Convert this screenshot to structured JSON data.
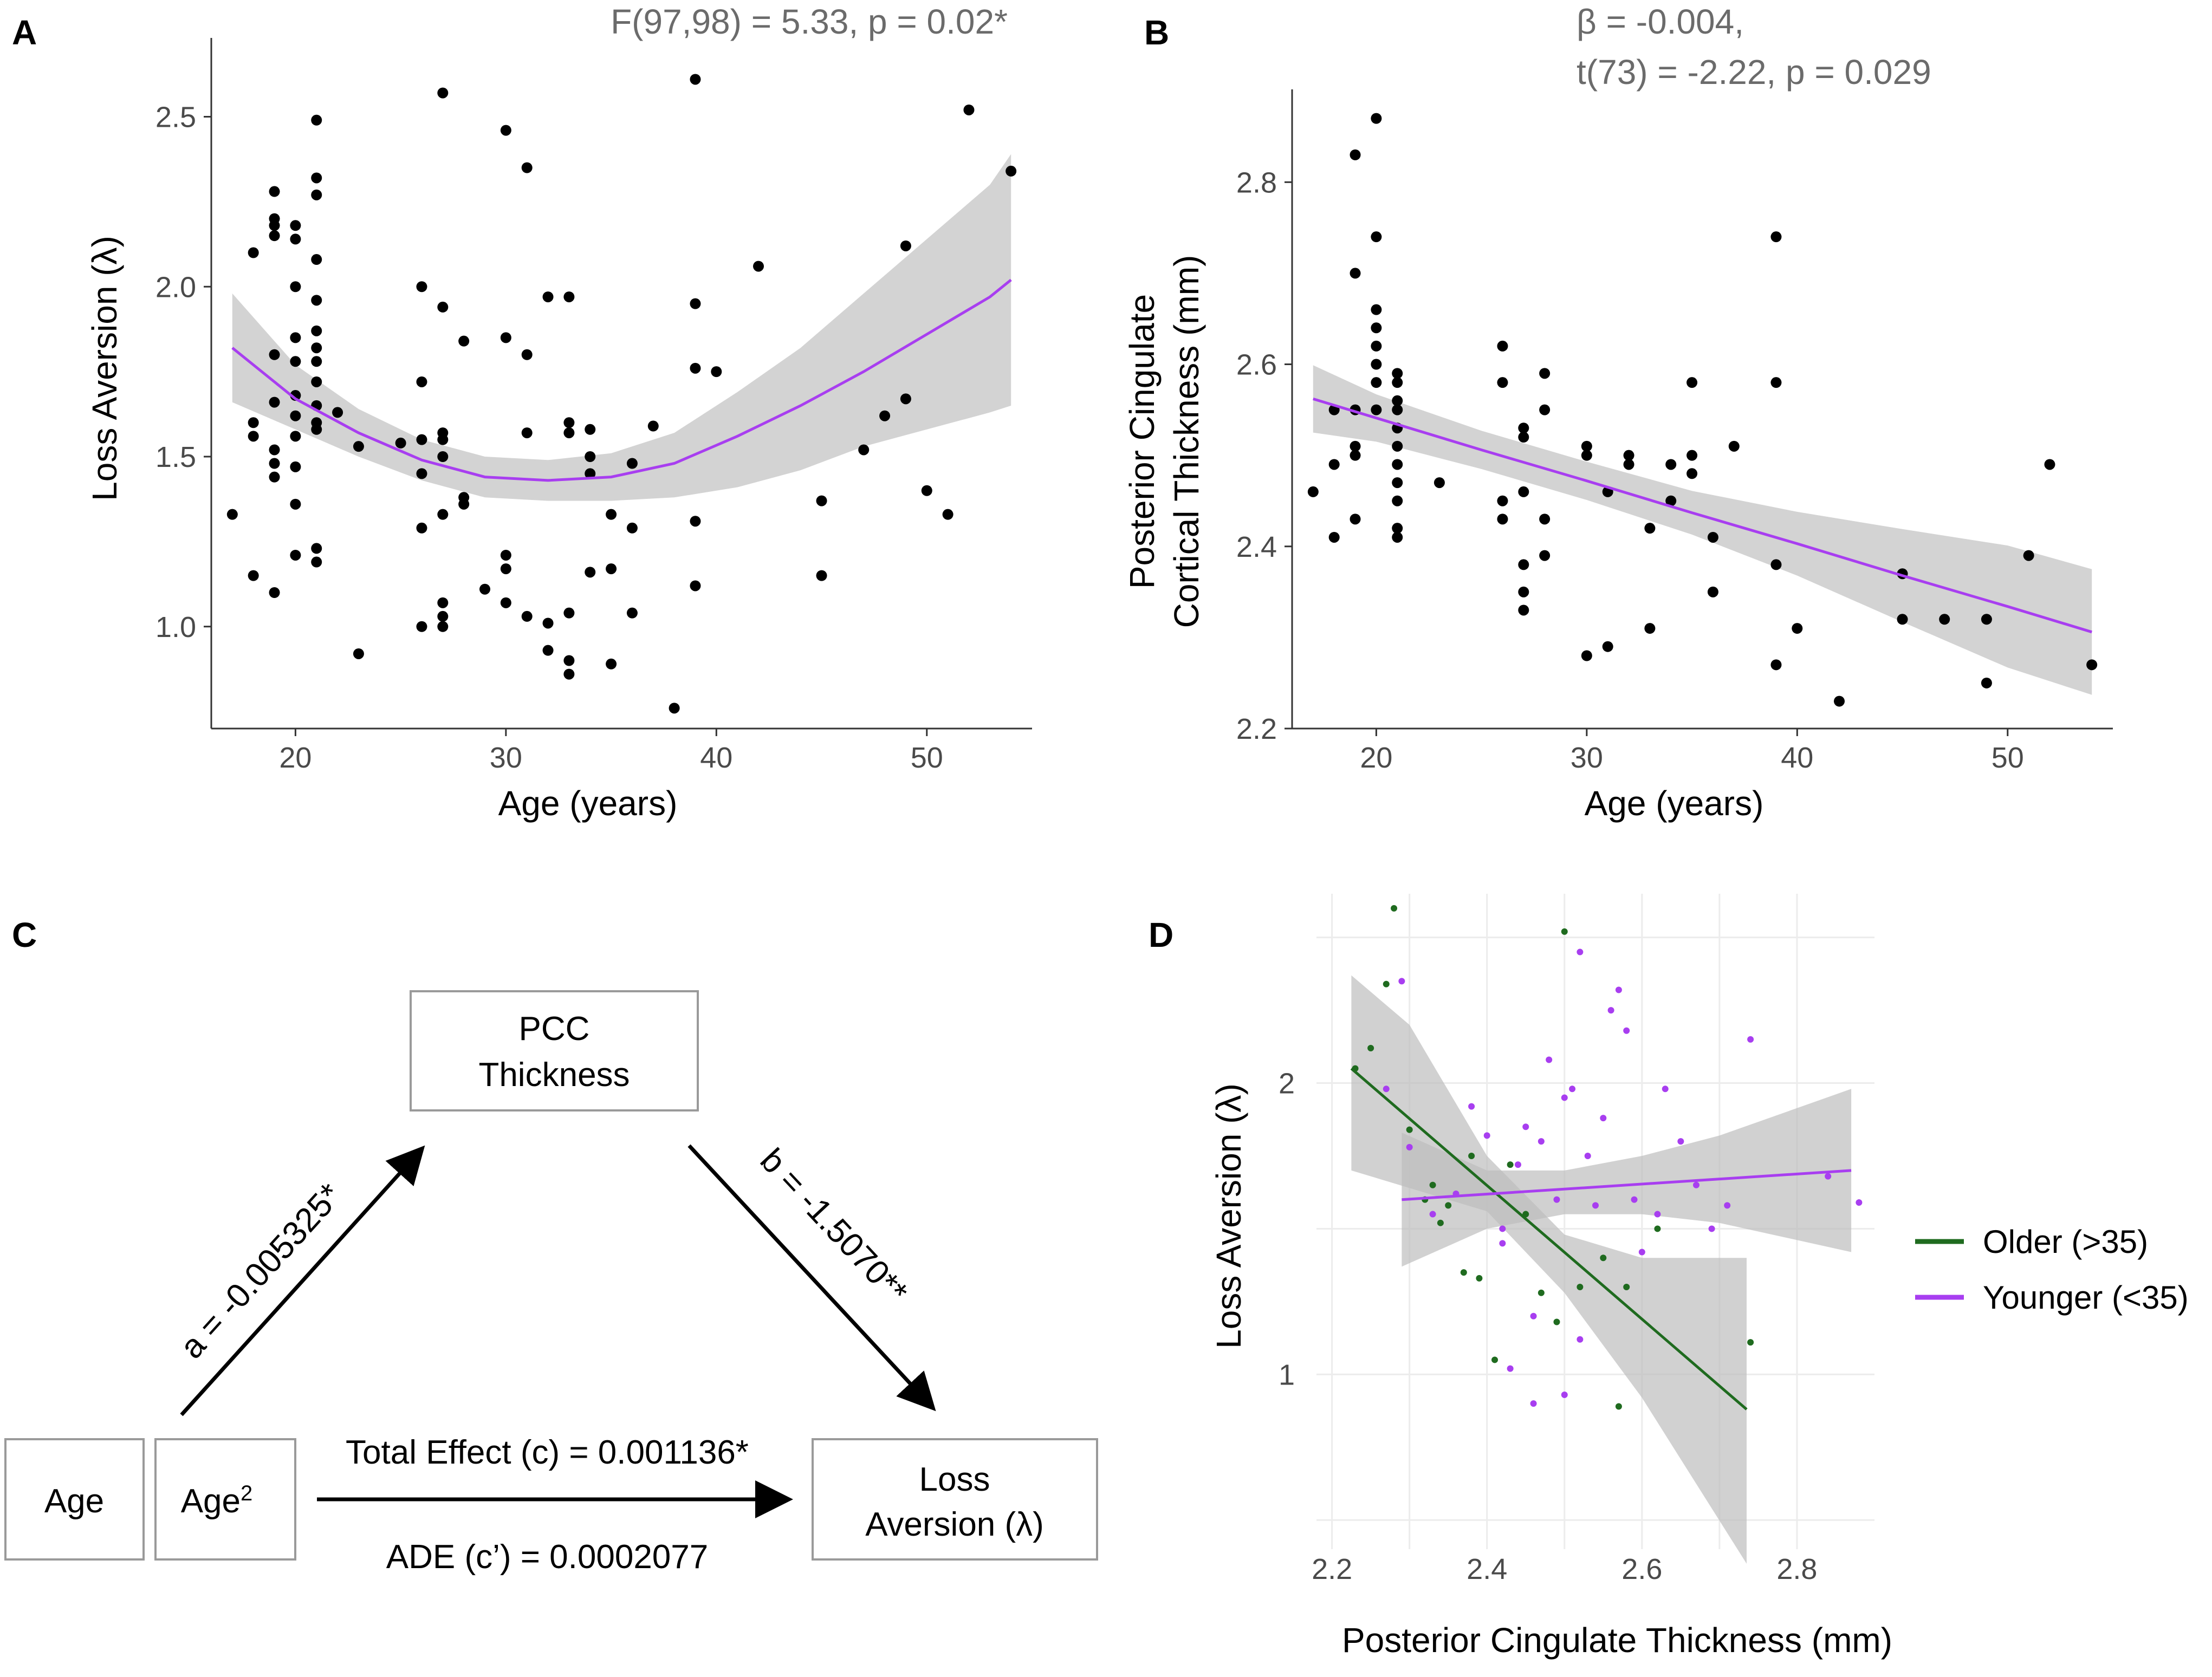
{
  "panels": {
    "A": {
      "letter": "A",
      "stat": "F(97,98) = 5.33, p = 0.02*",
      "xlabel": "Age (years)",
      "ylabel": "Loss Aversion (λ)"
    },
    "B": {
      "letter": "B",
      "stat_line1": "β = -0.004,",
      "stat_line2": "t(73) = -2.22, p = 0.029",
      "ylabel_line1": "Posterior Cingulate",
      "ylabel_line2": "Cortical Thickness (mm)",
      "xlabel": "Age (years)"
    },
    "C": {
      "letter": "C",
      "pcc_line1": "PCC",
      "pcc_line2": "Thickness",
      "age": "Age",
      "age2_base": "Age",
      "age2_sup": "2",
      "loss_line1": "Loss",
      "loss_line2": "Aversion (λ)",
      "path_a": "a = -0.005325*",
      "path_b": "b = -1.5070**",
      "total_effect": "Total Effect (c) = 0.001136*",
      "ade": "ADE (c’) =  0.0002077"
    },
    "D": {
      "letter": "D",
      "xlabel": "Posterior Cingulate Thickness (mm)",
      "ylabel": "Loss Aversion (λ)",
      "legend": [
        {
          "label": "Older (>35)",
          "color": "#1f6b1f"
        },
        {
          "label": "Younger (<35)",
          "color": "#a83ef0"
        }
      ]
    }
  },
  "colors": {
    "purple": "#a83ef0",
    "green": "#1f6b1f",
    "band": "#d3d3d3",
    "points": "#000000"
  },
  "chart_data": [
    {
      "id": "A",
      "type": "scatter",
      "title": "F(97,98) = 5.33, p = 0.02*",
      "xlabel": "Age (years)",
      "ylabel": "Loss Aversion (λ)",
      "xlim": [
        16,
        55
      ],
      "ylim": [
        0.7,
        2.7
      ],
      "xticks": [
        20,
        30,
        40,
        50
      ],
      "yticks": [
        1.0,
        1.5,
        2.0,
        2.5
      ],
      "points": [
        [
          17,
          1.33
        ],
        [
          18,
          2.1
        ],
        [
          18,
          1.6
        ],
        [
          18,
          1.56
        ],
        [
          18,
          1.15
        ],
        [
          19,
          2.28
        ],
        [
          19,
          2.2
        ],
        [
          19,
          2.18
        ],
        [
          19,
          2.15
        ],
        [
          19,
          1.8
        ],
        [
          19,
          1.66
        ],
        [
          19,
          1.52
        ],
        [
          19,
          1.48
        ],
        [
          19,
          1.44
        ],
        [
          19,
          1.1
        ],
        [
          20,
          2.18
        ],
        [
          20,
          2.14
        ],
        [
          20,
          2.0
        ],
        [
          20,
          1.85
        ],
        [
          20,
          1.78
        ],
        [
          20,
          1.68
        ],
        [
          20,
          1.62
        ],
        [
          20,
          1.56
        ],
        [
          20,
          1.47
        ],
        [
          20,
          1.36
        ],
        [
          20,
          1.21
        ],
        [
          21,
          2.49
        ],
        [
          21,
          2.32
        ],
        [
          21,
          2.27
        ],
        [
          21,
          2.08
        ],
        [
          21,
          1.96
        ],
        [
          21,
          1.87
        ],
        [
          21,
          1.82
        ],
        [
          21,
          1.78
        ],
        [
          21,
          1.72
        ],
        [
          21,
          1.65
        ],
        [
          21,
          1.6
        ],
        [
          21,
          1.58
        ],
        [
          21,
          1.23
        ],
        [
          21,
          1.19
        ],
        [
          22,
          1.63
        ],
        [
          23,
          1.53
        ],
        [
          23,
          0.92
        ],
        [
          25,
          1.54
        ],
        [
          26,
          2.0
        ],
        [
          26,
          1.72
        ],
        [
          26,
          1.55
        ],
        [
          26,
          1.45
        ],
        [
          26,
          1.29
        ],
        [
          26,
          1.0
        ],
        [
          27,
          2.57
        ],
        [
          27,
          1.94
        ],
        [
          27,
          1.57
        ],
        [
          27,
          1.55
        ],
        [
          27,
          1.5
        ],
        [
          27,
          1.33
        ],
        [
          27,
          1.07
        ],
        [
          27,
          1.03
        ],
        [
          27,
          1.0
        ],
        [
          28,
          1.84
        ],
        [
          28,
          1.38
        ],
        [
          28,
          1.36
        ],
        [
          29,
          1.11
        ],
        [
          30,
          2.46
        ],
        [
          30,
          1.85
        ],
        [
          30,
          1.21
        ],
        [
          30,
          1.17
        ],
        [
          30,
          1.07
        ],
        [
          31,
          2.35
        ],
        [
          31,
          1.8
        ],
        [
          31,
          1.57
        ],
        [
          31,
          1.03
        ],
        [
          32,
          1.97
        ],
        [
          32,
          1.01
        ],
        [
          32,
          0.93
        ],
        [
          33,
          1.97
        ],
        [
          33,
          1.6
        ],
        [
          33,
          1.57
        ],
        [
          33,
          1.04
        ],
        [
          33,
          0.9
        ],
        [
          33,
          0.86
        ],
        [
          34,
          1.58
        ],
        [
          34,
          1.5
        ],
        [
          34,
          1.45
        ],
        [
          34,
          1.16
        ],
        [
          35,
          1.33
        ],
        [
          35,
          1.17
        ],
        [
          35,
          0.89
        ],
        [
          36,
          1.48
        ],
        [
          36,
          1.29
        ],
        [
          36,
          1.04
        ],
        [
          37,
          1.59
        ],
        [
          38,
          0.76
        ],
        [
          39,
          2.61
        ],
        [
          39,
          1.95
        ],
        [
          39,
          1.76
        ],
        [
          39,
          1.31
        ],
        [
          39,
          1.12
        ],
        [
          40,
          1.75
        ],
        [
          42,
          2.06
        ],
        [
          45,
          1.37
        ],
        [
          45,
          1.15
        ],
        [
          47,
          1.52
        ],
        [
          48,
          1.62
        ],
        [
          49,
          2.12
        ],
        [
          49,
          1.67
        ],
        [
          50,
          1.4
        ],
        [
          51,
          1.33
        ],
        [
          52,
          2.52
        ],
        [
          54,
          2.34
        ]
      ],
      "fit": {
        "color": "#a83ef0",
        "x": [
          17,
          20,
          23,
          26,
          29,
          32,
          35,
          38,
          41,
          44,
          47,
          50,
          53,
          54
        ],
        "y": [
          1.82,
          1.67,
          1.57,
          1.49,
          1.44,
          1.43,
          1.44,
          1.48,
          1.56,
          1.65,
          1.75,
          1.86,
          1.97,
          2.02
        ],
        "lower": [
          1.66,
          1.58,
          1.5,
          1.43,
          1.38,
          1.37,
          1.37,
          1.38,
          1.41,
          1.46,
          1.53,
          1.58,
          1.63,
          1.65
        ],
        "upper": [
          1.98,
          1.77,
          1.64,
          1.55,
          1.5,
          1.49,
          1.51,
          1.57,
          1.69,
          1.82,
          1.98,
          2.14,
          2.3,
          2.39
        ]
      }
    },
    {
      "id": "B",
      "type": "scatter",
      "title": "β = -0.004, t(73) = -2.22, p = 0.029",
      "xlabel": "Age (years)",
      "ylabel": "Posterior Cingulate Cortical Thickness (mm)",
      "xlim": [
        16,
        55
      ],
      "ylim": [
        2.2,
        2.89
      ],
      "xticks": [
        20,
        30,
        40,
        50
      ],
      "yticks": [
        2.2,
        2.4,
        2.6,
        2.8
      ],
      "points": [
        [
          17,
          2.46
        ],
        [
          18,
          2.55
        ],
        [
          18,
          2.49
        ],
        [
          18,
          2.41
        ],
        [
          19,
          2.83
        ],
        [
          19,
          2.7
        ],
        [
          19,
          2.55
        ],
        [
          19,
          2.51
        ],
        [
          19,
          2.5
        ],
        [
          19,
          2.43
        ],
        [
          20,
          2.87
        ],
        [
          20,
          2.74
        ],
        [
          20,
          2.66
        ],
        [
          20,
          2.64
        ],
        [
          20,
          2.62
        ],
        [
          20,
          2.6
        ],
        [
          20,
          2.58
        ],
        [
          20,
          2.55
        ],
        [
          21,
          2.59
        ],
        [
          21,
          2.58
        ],
        [
          21,
          2.56
        ],
        [
          21,
          2.55
        ],
        [
          21,
          2.53
        ],
        [
          21,
          2.51
        ],
        [
          21,
          2.49
        ],
        [
          21,
          2.47
        ],
        [
          21,
          2.45
        ],
        [
          21,
          2.42
        ],
        [
          21,
          2.41
        ],
        [
          23,
          2.47
        ],
        [
          26,
          2.62
        ],
        [
          26,
          2.58
        ],
        [
          26,
          2.45
        ],
        [
          26,
          2.43
        ],
        [
          27,
          2.53
        ],
        [
          27,
          2.52
        ],
        [
          27,
          2.46
        ],
        [
          27,
          2.38
        ],
        [
          27,
          2.35
        ],
        [
          27,
          2.33
        ],
        [
          28,
          2.59
        ],
        [
          28,
          2.55
        ],
        [
          28,
          2.43
        ],
        [
          28,
          2.39
        ],
        [
          30,
          2.51
        ],
        [
          30,
          2.5
        ],
        [
          30,
          2.28
        ],
        [
          31,
          2.46
        ],
        [
          31,
          2.29
        ],
        [
          32,
          2.5
        ],
        [
          32,
          2.49
        ],
        [
          33,
          2.42
        ],
        [
          33,
          2.31
        ],
        [
          34,
          2.49
        ],
        [
          34,
          2.45
        ],
        [
          35,
          2.58
        ],
        [
          35,
          2.5
        ],
        [
          35,
          2.48
        ],
        [
          36,
          2.41
        ],
        [
          36,
          2.35
        ],
        [
          37,
          2.51
        ],
        [
          39,
          2.74
        ],
        [
          39,
          2.58
        ],
        [
          39,
          2.38
        ],
        [
          39,
          2.27
        ],
        [
          40,
          2.31
        ],
        [
          42,
          2.23
        ],
        [
          45,
          2.37
        ],
        [
          45,
          2.32
        ],
        [
          47,
          2.32
        ],
        [
          49,
          2.32
        ],
        [
          49,
          2.25
        ],
        [
          51,
          2.39
        ],
        [
          52,
          2.49
        ],
        [
          54,
          2.27
        ]
      ],
      "fit": {
        "color": "#a83ef0",
        "x": [
          17,
          20,
          25,
          30,
          35,
          40,
          45,
          50,
          54
        ],
        "y": [
          2.562,
          2.541,
          2.506,
          2.472,
          2.437,
          2.403,
          2.368,
          2.334,
          2.306
        ],
        "lower": [
          2.525,
          2.515,
          2.485,
          2.451,
          2.413,
          2.368,
          2.317,
          2.267,
          2.237
        ],
        "upper": [
          2.599,
          2.567,
          2.527,
          2.493,
          2.461,
          2.438,
          2.419,
          2.401,
          2.375
        ]
      }
    },
    {
      "id": "D",
      "type": "scatter",
      "xlabel": "Posterior Cingulate Thickness (mm)",
      "ylabel": "Loss Aversion (λ)",
      "xlim": [
        2.18,
        2.9
      ],
      "ylim": [
        0.4,
        2.65
      ],
      "xticks": [
        2.2,
        2.4,
        2.6,
        2.8
      ],
      "yticks": [
        1,
        2
      ],
      "series": [
        {
          "name": "Older (>35)",
          "color": "#1f6b1f",
          "points": [
            [
              2.23,
              2.05
            ],
            [
              2.25,
              2.12
            ],
            [
              2.27,
              2.34
            ],
            [
              2.28,
              2.6
            ],
            [
              2.3,
              1.84
            ],
            [
              2.32,
              1.6
            ],
            [
              2.33,
              1.65
            ],
            [
              2.34,
              1.52
            ],
            [
              2.35,
              1.58
            ],
            [
              2.37,
              1.35
            ],
            [
              2.38,
              1.75
            ],
            [
              2.39,
              1.33
            ],
            [
              2.41,
              1.05
            ],
            [
              2.43,
              1.72
            ],
            [
              2.45,
              1.55
            ],
            [
              2.47,
              1.28
            ],
            [
              2.49,
              1.18
            ],
            [
              2.5,
              2.52
            ],
            [
              2.52,
              1.3
            ],
            [
              2.55,
              1.4
            ],
            [
              2.57,
              0.89
            ],
            [
              2.58,
              1.3
            ],
            [
              2.62,
              1.5
            ],
            [
              2.74,
              1.11
            ]
          ],
          "fit": {
            "x": [
              2.225,
              2.735
            ],
            "y": [
              2.05,
              0.88
            ]
          },
          "band": {
            "x": [
              2.225,
              2.3,
              2.4,
              2.5,
              2.6,
              2.735
            ],
            "lower": [
              1.7,
              1.64,
              1.56,
              1.28,
              0.92,
              0.35
            ],
            "upper": [
              2.37,
              2.2,
              1.75,
              1.48,
              1.4,
              1.4
            ]
          }
        },
        {
          "name": "Younger (<35)",
          "color": "#a83ef0",
          "points": [
            [
              2.27,
              1.98
            ],
            [
              2.29,
              2.35
            ],
            [
              2.3,
              1.78
            ],
            [
              2.33,
              1.55
            ],
            [
              2.36,
              1.62
            ],
            [
              2.38,
              1.92
            ],
            [
              2.4,
              1.82
            ],
            [
              2.42,
              1.5
            ],
            [
              2.42,
              1.45
            ],
            [
              2.44,
              1.72
            ],
            [
              2.45,
              1.85
            ],
            [
              2.46,
              1.2
            ],
            [
              2.47,
              1.8
            ],
            [
              2.48,
              2.08
            ],
            [
              2.49,
              1.6
            ],
            [
              2.5,
              1.95
            ],
            [
              2.5,
              0.93
            ],
            [
              2.51,
              1.98
            ],
            [
              2.52,
              2.45
            ],
            [
              2.53,
              1.75
            ],
            [
              2.54,
              1.58
            ],
            [
              2.55,
              1.88
            ],
            [
              2.56,
              2.25
            ],
            [
              2.57,
              2.32
            ],
            [
              2.58,
              2.18
            ],
            [
              2.59,
              1.6
            ],
            [
              2.6,
              1.42
            ],
            [
              2.62,
              1.55
            ],
            [
              2.63,
              1.98
            ],
            [
              2.65,
              1.8
            ],
            [
              2.67,
              1.65
            ],
            [
              2.69,
              1.5
            ],
            [
              2.71,
              1.58
            ],
            [
              2.74,
              2.15
            ],
            [
              2.84,
              1.68
            ],
            [
              2.88,
              1.59
            ],
            [
              2.43,
              1.02
            ],
            [
              2.46,
              0.9
            ],
            [
              2.52,
              1.12
            ]
          ],
          "fit": {
            "x": [
              2.29,
              2.87
            ],
            "y": [
              1.6,
              1.7
            ]
          },
          "band": {
            "x": [
              2.29,
              2.4,
              2.5,
              2.6,
              2.7,
              2.87
            ],
            "lower": [
              1.37,
              1.5,
              1.55,
              1.55,
              1.52,
              1.42
            ],
            "upper": [
              1.83,
              1.7,
              1.7,
              1.75,
              1.82,
              1.98
            ]
          }
        }
      ]
    }
  ]
}
